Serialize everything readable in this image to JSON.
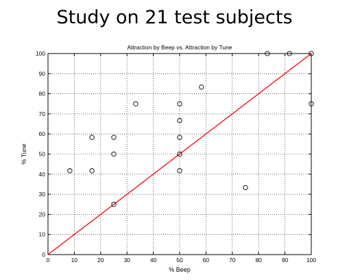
{
  "slide": {
    "title": "Study on 21 test subjects"
  },
  "chart_data": {
    "type": "scatter",
    "title": "Attraction by Beep vs. Attraction by Tune",
    "xlabel": "% Beep",
    "ylabel": "% Tune",
    "xlim": [
      0,
      100
    ],
    "ylim": [
      0,
      100
    ],
    "xticks": [
      0,
      10,
      20,
      30,
      40,
      50,
      60,
      70,
      80,
      90,
      100
    ],
    "yticks": [
      0,
      10,
      20,
      30,
      40,
      50,
      60,
      70,
      80,
      90,
      100
    ],
    "grid": true,
    "points": [
      {
        "x": 8.3,
        "y": 41.7
      },
      {
        "x": 16.7,
        "y": 41.7
      },
      {
        "x": 16.7,
        "y": 58.3
      },
      {
        "x": 25,
        "y": 25
      },
      {
        "x": 25,
        "y": 50
      },
      {
        "x": 25,
        "y": 58.3
      },
      {
        "x": 33.3,
        "y": 75
      },
      {
        "x": 50,
        "y": 41.7
      },
      {
        "x": 50,
        "y": 50
      },
      {
        "x": 50,
        "y": 58.3
      },
      {
        "x": 50,
        "y": 66.7
      },
      {
        "x": 50,
        "y": 75
      },
      {
        "x": 58.3,
        "y": 83.3
      },
      {
        "x": 75,
        "y": 33.3
      },
      {
        "x": 83.3,
        "y": 100
      },
      {
        "x": 91.7,
        "y": 100
      },
      {
        "x": 100,
        "y": 100
      },
      {
        "x": 100,
        "y": 75
      }
    ],
    "reference_line": {
      "x": [
        0,
        100
      ],
      "y": [
        0,
        100
      ]
    },
    "colors": {
      "points": "#000000",
      "reference_line": "#ff0000",
      "grid": "#000000"
    }
  }
}
